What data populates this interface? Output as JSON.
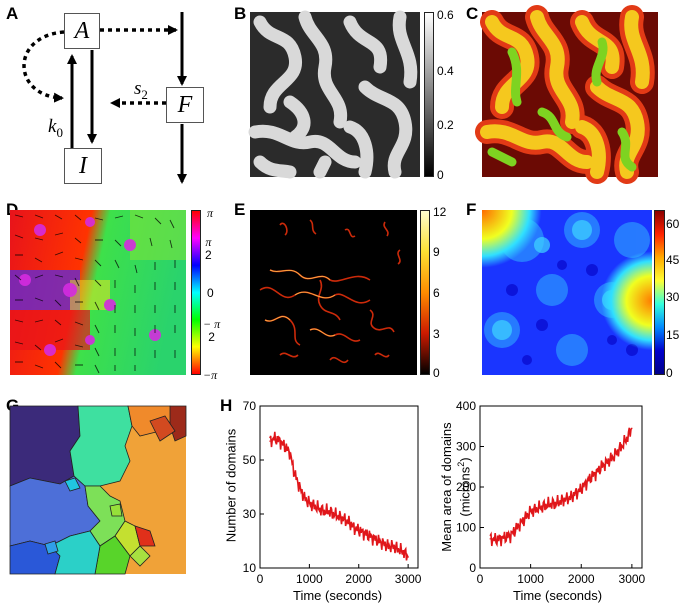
{
  "panels": {
    "A": "A",
    "B": "B",
    "C": "C",
    "D": "D",
    "E": "E",
    "F": "F",
    "G": "G",
    "H": "H"
  },
  "diagram": {
    "node_a": "A",
    "node_f": "F",
    "node_i": "I",
    "rate_k": "k",
    "rate_k_sub": "0",
    "rate_s": "s",
    "rate_s_sub": "2"
  },
  "colorbar_b": {
    "ticks": [
      "0.6",
      "0.4",
      "0.2",
      "0"
    ]
  },
  "colorbar_d": {
    "pi": "π",
    "pi_half_num": "π",
    "pi_half_den": "2",
    "zero": "0",
    "neg_pi_half_num": "− π",
    "neg_pi_half_den": "2",
    "neg_pi": "−π"
  },
  "colorbar_e": {
    "ticks": [
      "12",
      "9",
      "6",
      "3",
      "0"
    ]
  },
  "colorbar_f": {
    "ticks": [
      "60",
      "45",
      "30",
      "15",
      "0"
    ]
  },
  "chart_data": [
    {
      "type": "line",
      "title": "",
      "xlabel": "Time (seconds)",
      "ylabel": "Number of domains",
      "xlim": [
        0,
        3200
      ],
      "ylim": [
        10,
        70
      ],
      "xticks": [
        "0",
        "1000",
        "2000",
        "3000"
      ],
      "yticks": [
        "70",
        "50",
        "30",
        "10"
      ],
      "color": "#e0161a",
      "x": [
        200,
        300,
        400,
        500,
        600,
        700,
        800,
        900,
        1000,
        1100,
        1200,
        1300,
        1400,
        1500,
        1600,
        1700,
        1800,
        1900,
        2000,
        2100,
        2200,
        2300,
        2400,
        2500,
        2600,
        2700,
        2800,
        2900,
        3000
      ],
      "values": [
        57,
        58,
        57,
        55,
        53,
        45,
        40,
        36,
        34,
        33,
        32,
        31,
        31,
        30,
        29,
        28,
        27,
        25,
        24,
        23,
        22,
        21,
        20,
        19,
        18,
        18,
        17,
        16,
        14
      ]
    },
    {
      "type": "line",
      "title": "",
      "xlabel": "Time (seconds)",
      "ylabel": "Mean area of domains",
      "ylabel_unit": "(microns",
      "ylabel_sup": "2",
      "ylabel_close": ")",
      "xlim": [
        0,
        3200
      ],
      "ylim": [
        0,
        400
      ],
      "xticks": [
        "0",
        "1000",
        "2000",
        "3000"
      ],
      "yticks": [
        "400",
        "300",
        "200",
        "100",
        "0"
      ],
      "color": "#e0161a",
      "x": [
        200,
        300,
        400,
        500,
        600,
        700,
        800,
        900,
        1000,
        1100,
        1200,
        1300,
        1400,
        1500,
        1600,
        1700,
        1800,
        1900,
        2000,
        2100,
        2200,
        2300,
        2400,
        2500,
        2600,
        2700,
        2800,
        2900,
        3000
      ],
      "values": [
        72,
        70,
        72,
        76,
        80,
        95,
        110,
        125,
        140,
        145,
        150,
        155,
        158,
        160,
        165,
        170,
        175,
        185,
        195,
        210,
        225,
        235,
        250,
        260,
        270,
        285,
        300,
        320,
        345
      ]
    }
  ]
}
